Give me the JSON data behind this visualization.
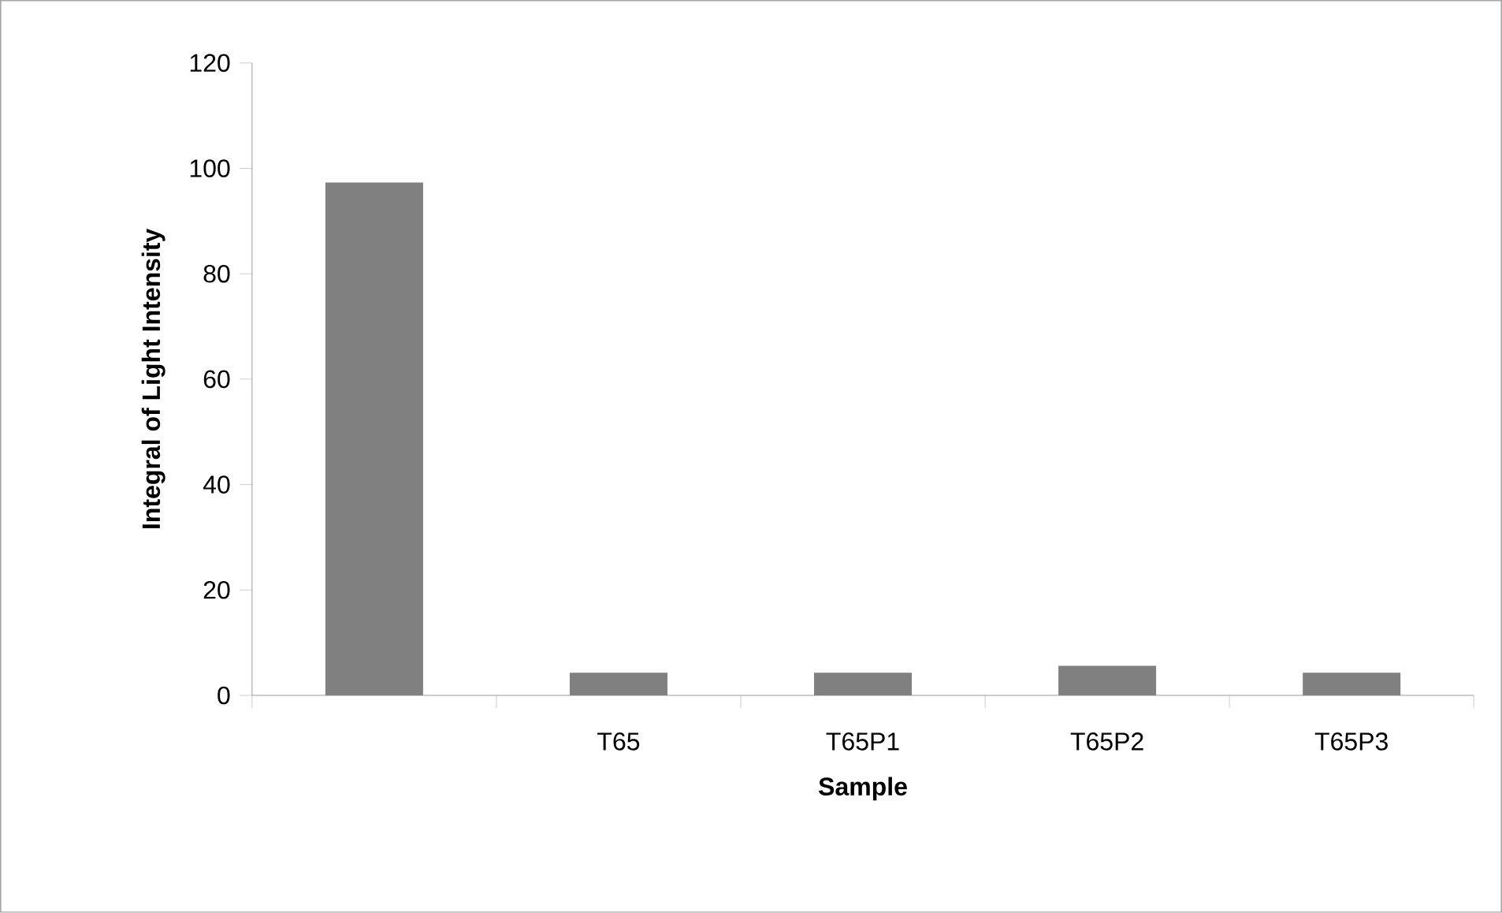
{
  "chart_data": {
    "type": "bar",
    "xlabel": "Sample",
    "ylabel": "Integral of Light Intensity",
    "categories": [
      null,
      "T65",
      "T65P1",
      "T65P2",
      "T65P3"
    ],
    "values": [
      97.3,
      4.3,
      4.3,
      5.6,
      4.3
    ],
    "color": "#808080",
    "ylim": [
      0,
      120
    ],
    "yticks": [
      0,
      20,
      40,
      60,
      80,
      100,
      120
    ],
    "grid": false
  }
}
